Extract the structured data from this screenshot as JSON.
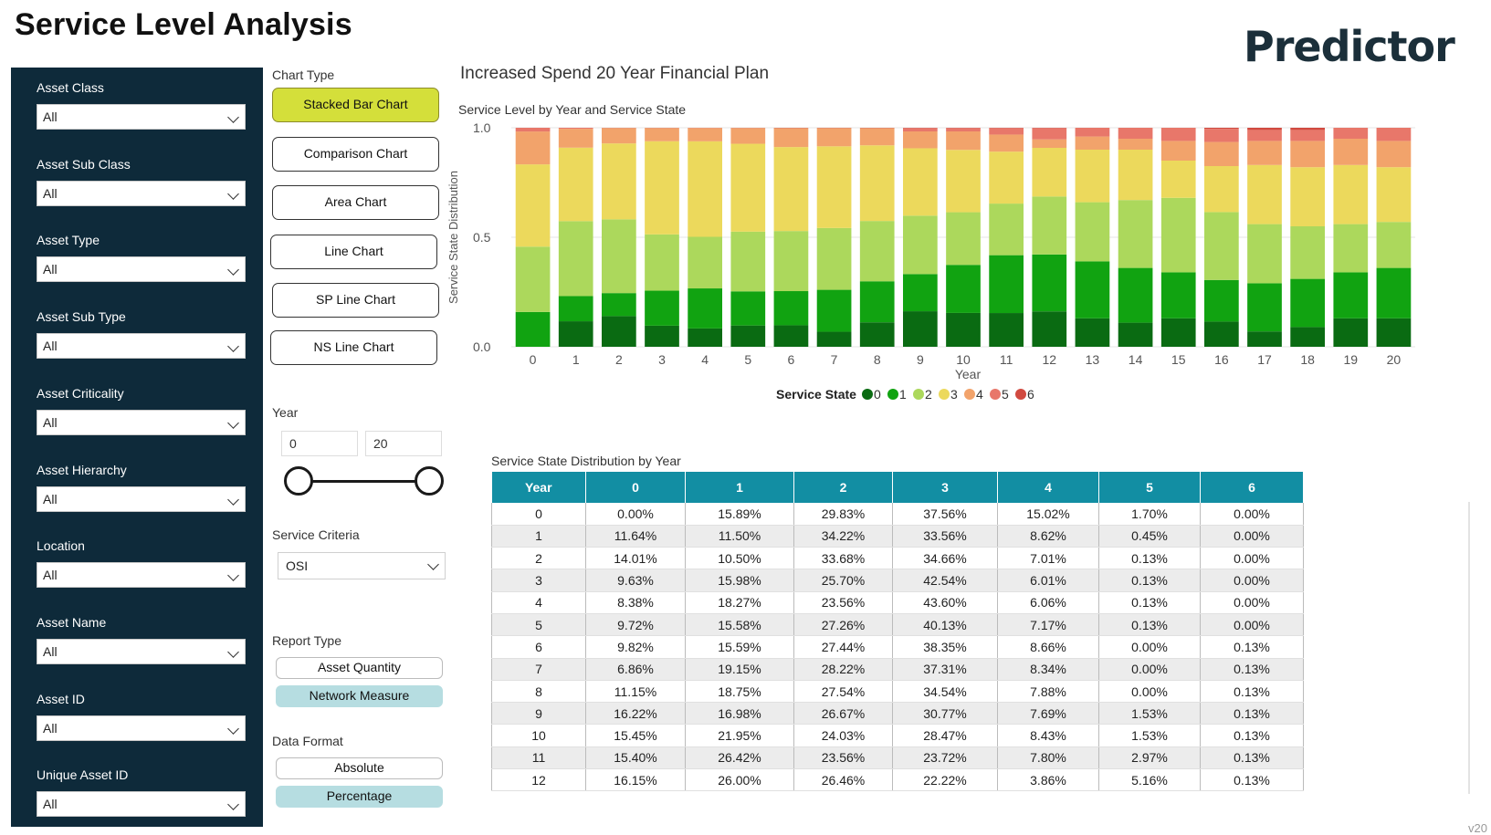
{
  "page": {
    "title": "Service Level Analysis",
    "logo": "Predictor",
    "version": "v20"
  },
  "filters": [
    {
      "label": "Asset Class",
      "value": "All"
    },
    {
      "label": "Asset Sub Class",
      "value": "All"
    },
    {
      "label": "Asset Type",
      "value": "All"
    },
    {
      "label": "Asset Sub Type",
      "value": "All"
    },
    {
      "label": "Asset Criticality",
      "value": "All"
    },
    {
      "label": "Asset Hierarchy",
      "value": "All"
    },
    {
      "label": "Location",
      "value": "All"
    },
    {
      "label": "Asset Name",
      "value": "All"
    },
    {
      "label": "Asset ID",
      "value": "All"
    },
    {
      "label": "Unique Asset ID",
      "value": "All"
    }
  ],
  "chart_type": {
    "label": "Chart Type",
    "options": [
      "Stacked Bar Chart",
      "Comparison Chart",
      "Area Chart",
      "Line Chart",
      "SP Line Chart",
      "NS Line Chart"
    ],
    "selected": "Stacked Bar Chart"
  },
  "year": {
    "label": "Year",
    "min": "0",
    "max": "20"
  },
  "service_criteria": {
    "label": "Service Criteria",
    "value": "OSI"
  },
  "report_type": {
    "label": "Report Type",
    "options": [
      "Asset Quantity",
      "Network Measure"
    ],
    "selected": "Network Measure"
  },
  "data_format": {
    "label": "Data Format",
    "options": [
      "Absolute",
      "Percentage"
    ],
    "selected": "Percentage"
  },
  "plan_title": "Increased Spend 20 Year Financial Plan",
  "chart_data": {
    "type": "bar",
    "stacked": true,
    "title": "Service Level by Year and Service State",
    "xlabel": "Year",
    "ylabel": "Service State Distribution",
    "ylim": [
      0,
      1
    ],
    "yticks": [
      "0.0",
      "0.5",
      "1.0"
    ],
    "legend_title": "Service State",
    "legend_position": "bottom",
    "categories": [
      "0",
      "1",
      "2",
      "3",
      "4",
      "5",
      "6",
      "7",
      "8",
      "9",
      "10",
      "11",
      "12",
      "13",
      "14",
      "15",
      "16",
      "17",
      "18",
      "19",
      "20"
    ],
    "series": [
      {
        "name": "0",
        "color": "#0a6b12",
        "values": [
          0.0,
          0.1164,
          0.1401,
          0.0963,
          0.0838,
          0.0972,
          0.0982,
          0.0686,
          0.1115,
          0.1622,
          0.1545,
          0.154,
          0.1615,
          0.13,
          0.11,
          0.13,
          0.115,
          0.07,
          0.09,
          0.13,
          0.13
        ]
      },
      {
        "name": "1",
        "color": "#11a311",
        "values": [
          0.1589,
          0.115,
          0.105,
          0.1598,
          0.1827,
          0.1558,
          0.1559,
          0.1915,
          0.1875,
          0.1698,
          0.2195,
          0.2642,
          0.26,
          0.26,
          0.25,
          0.21,
          0.19,
          0.22,
          0.22,
          0.21,
          0.23
        ]
      },
      {
        "name": "2",
        "color": "#acd85c",
        "values": [
          0.2983,
          0.3422,
          0.3368,
          0.257,
          0.2356,
          0.2726,
          0.2744,
          0.2822,
          0.2754,
          0.2667,
          0.2403,
          0.2356,
          0.2646,
          0.27,
          0.31,
          0.34,
          0.31,
          0.27,
          0.24,
          0.22,
          0.21
        ]
      },
      {
        "name": "3",
        "color": "#ecd95c",
        "values": [
          0.3756,
          0.3356,
          0.3466,
          0.4254,
          0.436,
          0.4013,
          0.3835,
          0.3731,
          0.3454,
          0.3077,
          0.2847,
          0.2372,
          0.2222,
          0.24,
          0.23,
          0.17,
          0.21,
          0.27,
          0.27,
          0.27,
          0.25
        ]
      },
      {
        "name": "4",
        "color": "#f2a36b",
        "values": [
          0.1502,
          0.0862,
          0.0701,
          0.0601,
          0.0606,
          0.0717,
          0.0866,
          0.0834,
          0.0788,
          0.0769,
          0.0843,
          0.078,
          0.0386,
          0.06,
          0.05,
          0.09,
          0.11,
          0.11,
          0.12,
          0.12,
          0.12
        ]
      },
      {
        "name": "5",
        "color": "#e8776a",
        "values": [
          0.017,
          0.0045,
          0.0013,
          0.0013,
          0.0013,
          0.0013,
          0.0,
          0.0,
          0.0,
          0.0153,
          0.0153,
          0.0297,
          0.0516,
          0.04,
          0.05,
          0.06,
          0.06,
          0.05,
          0.05,
          0.05,
          0.06
        ]
      },
      {
        "name": "6",
        "color": "#d14a40",
        "values": [
          0.0,
          0.0,
          0.0,
          0.0,
          0.0,
          0.0,
          0.0013,
          0.0013,
          0.0013,
          0.0013,
          0.0013,
          0.0013,
          0.0013,
          0.0,
          0.0,
          0.0,
          0.0,
          0.0,
          0.0,
          0.0,
          0.0
        ]
      }
    ]
  },
  "table": {
    "title": "Service State Distribution by Year",
    "columns": [
      "Year",
      "0",
      "1",
      "2",
      "3",
      "4",
      "5",
      "6"
    ],
    "rows": [
      [
        "0",
        "0.00%",
        "15.89%",
        "29.83%",
        "37.56%",
        "15.02%",
        "1.70%",
        "0.00%"
      ],
      [
        "1",
        "11.64%",
        "11.50%",
        "34.22%",
        "33.56%",
        "8.62%",
        "0.45%",
        "0.00%"
      ],
      [
        "2",
        "14.01%",
        "10.50%",
        "33.68%",
        "34.66%",
        "7.01%",
        "0.13%",
        "0.00%"
      ],
      [
        "3",
        "9.63%",
        "15.98%",
        "25.70%",
        "42.54%",
        "6.01%",
        "0.13%",
        "0.00%"
      ],
      [
        "4",
        "8.38%",
        "18.27%",
        "23.56%",
        "43.60%",
        "6.06%",
        "0.13%",
        "0.00%"
      ],
      [
        "5",
        "9.72%",
        "15.58%",
        "27.26%",
        "40.13%",
        "7.17%",
        "0.13%",
        "0.00%"
      ],
      [
        "6",
        "9.82%",
        "15.59%",
        "27.44%",
        "38.35%",
        "8.66%",
        "0.00%",
        "0.13%"
      ],
      [
        "7",
        "6.86%",
        "19.15%",
        "28.22%",
        "37.31%",
        "8.34%",
        "0.00%",
        "0.13%"
      ],
      [
        "8",
        "11.15%",
        "18.75%",
        "27.54%",
        "34.54%",
        "7.88%",
        "0.00%",
        "0.13%"
      ],
      [
        "9",
        "16.22%",
        "16.98%",
        "26.67%",
        "30.77%",
        "7.69%",
        "1.53%",
        "0.13%"
      ],
      [
        "10",
        "15.45%",
        "21.95%",
        "24.03%",
        "28.47%",
        "8.43%",
        "1.53%",
        "0.13%"
      ],
      [
        "11",
        "15.40%",
        "26.42%",
        "23.56%",
        "23.72%",
        "7.80%",
        "2.97%",
        "0.13%"
      ],
      [
        "12",
        "16.15%",
        "26.00%",
        "26.46%",
        "22.22%",
        "3.86%",
        "5.16%",
        "0.13%"
      ]
    ]
  }
}
